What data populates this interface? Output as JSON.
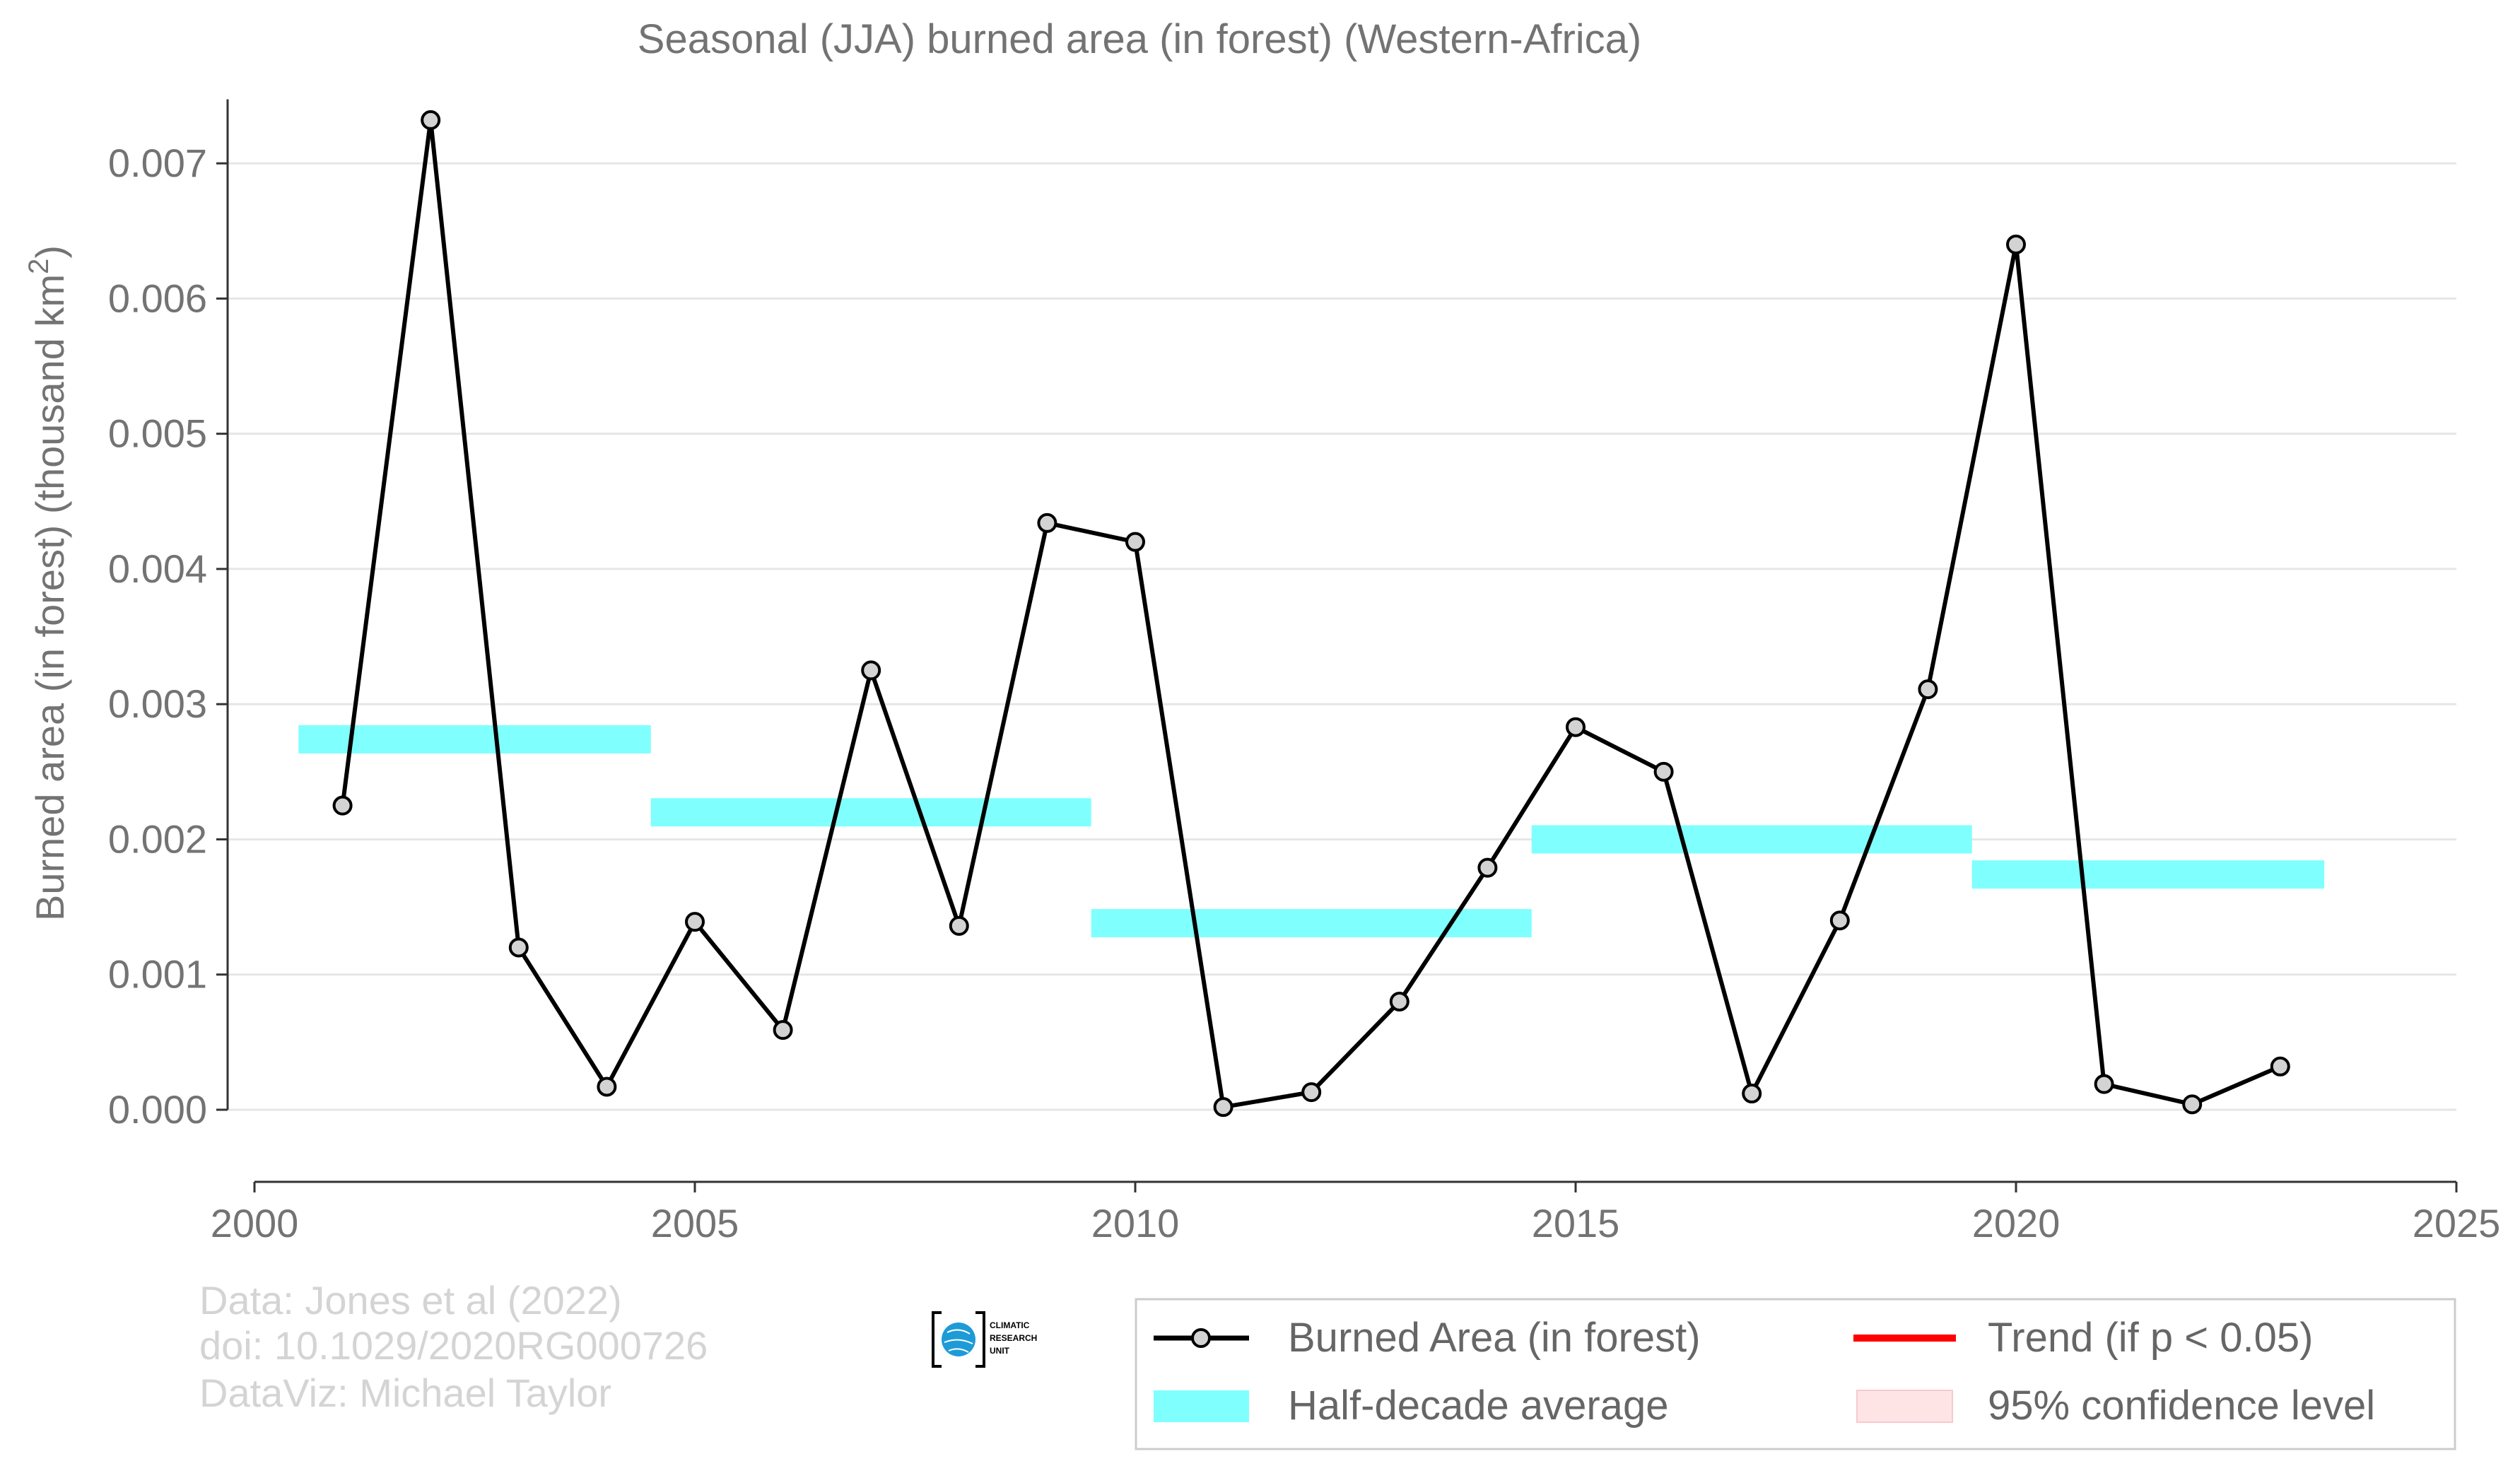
{
  "chart_data": {
    "type": "line",
    "title": "Seasonal (JJA) burned area (in forest) (Western-Africa)",
    "ylabel": "Burned area (in forest) (thousand km²)",
    "ylabel_main": "Burned area (in forest) (thousand km",
    "ylabel_sup": "2",
    "ylabel_close": ")",
    "xlabel": "",
    "xlim": [
      2000,
      2025
    ],
    "ylim": [
      -0.00055,
      0.0075
    ],
    "x_ticks": [
      "2000",
      "2005",
      "2010",
      "2015",
      "2020",
      "2025"
    ],
    "y_ticks": [
      "0.000",
      "0.001",
      "0.002",
      "0.003",
      "0.004",
      "0.005",
      "0.006",
      "0.007"
    ],
    "grid": "horizontal",
    "legend_position": "bottom-right",
    "series": [
      {
        "name": "Burned Area (in forest)",
        "color": "#000000",
        "marker_fill": "#d3d3d3",
        "x": [
          2001,
          2002,
          2003,
          2004,
          2005,
          2006,
          2007,
          2008,
          2009,
          2010,
          2011,
          2012,
          2013,
          2014,
          2015,
          2016,
          2017,
          2018,
          2019,
          2020,
          2021,
          2022,
          2023
        ],
        "y": [
          0.00225,
          0.00732,
          0.0012,
          0.00017,
          0.00139,
          0.00059,
          0.00325,
          0.00136,
          0.00434,
          0.0042,
          2e-05,
          0.00013,
          0.0008,
          0.00179,
          0.00283,
          0.0025,
          0.00012,
          0.0014,
          0.00311,
          0.0064,
          0.00019,
          4e-05,
          0.00032
        ]
      }
    ],
    "half_decade_average": {
      "name": "Half-decade average",
      "color": "#80ffff",
      "segments": [
        {
          "x0": 2000.5,
          "x1": 2004.5,
          "y": 0.00274
        },
        {
          "x0": 2004.5,
          "x1": 2009.5,
          "y": 0.0022
        },
        {
          "x0": 2009.5,
          "x1": 2014.5,
          "y": 0.00138
        },
        {
          "x0": 2014.5,
          "x1": 2019.5,
          "y": 0.002
        },
        {
          "x0": 2019.5,
          "x1": 2023.5,
          "y": 0.00174
        }
      ]
    },
    "legend": [
      {
        "label": "Burned Area (in forest)",
        "kind": "line-marker",
        "color": "#000000"
      },
      {
        "label": "Trend (if p < 0.05)",
        "kind": "line",
        "color": "#ff0000"
      },
      {
        "label": "Half-decade average",
        "kind": "band",
        "color": "#80ffff"
      },
      {
        "label": "95% confidence level",
        "kind": "band",
        "color": "#ffe4e6"
      }
    ]
  },
  "credits": {
    "line1": "Data: Jones et al (2022)",
    "line2": "doi: 10.1029/2020RG000726",
    "line3": "DataViz: Michael Taylor"
  },
  "logo": {
    "line1": "CLIMATIC",
    "line2": "RESEARCH",
    "line3": "UNIT",
    "color": "#1e9bd7"
  }
}
